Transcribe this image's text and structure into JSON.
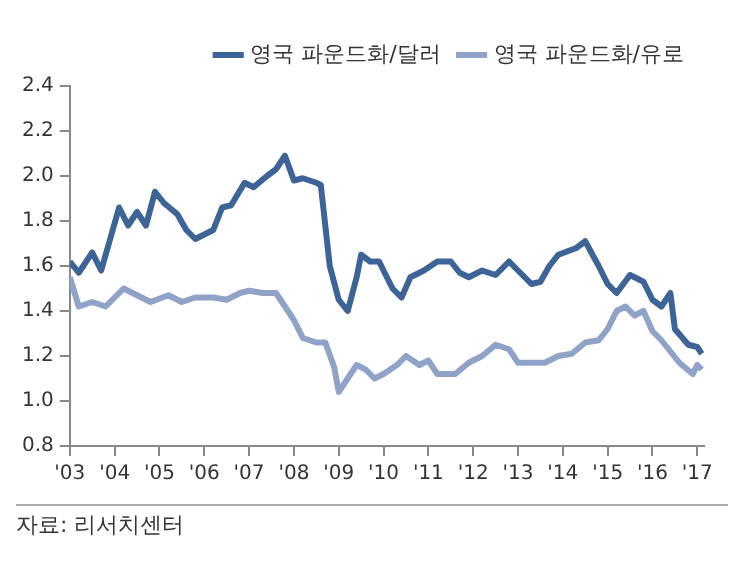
{
  "chart_data": {
    "type": "line",
    "legend": "top right",
    "grid": false,
    "marker": "none",
    "line_style": "solid",
    "xlim": [
      2003,
      2017.15
    ],
    "xticks": [
      {
        "value": 2003,
        "label": "'03"
      },
      {
        "value": 2004,
        "label": "'04"
      },
      {
        "value": 2005,
        "label": "'05"
      },
      {
        "value": 2006,
        "label": "'06"
      },
      {
        "value": 2007,
        "label": "'07"
      },
      {
        "value": 2008,
        "label": "'08"
      },
      {
        "value": 2009,
        "label": "'09"
      },
      {
        "value": 2010,
        "label": "'10"
      },
      {
        "value": 2011,
        "label": "'11"
      },
      {
        "value": 2012,
        "label": "'12"
      },
      {
        "value": 2013,
        "label": "'13"
      },
      {
        "value": 2014,
        "label": "'14"
      },
      {
        "value": 2015,
        "label": "'15"
      },
      {
        "value": 2016,
        "label": "'16"
      },
      {
        "value": 2017,
        "label": "'17"
      }
    ],
    "ylim": [
      0.8,
      2.4
    ],
    "yticks": [
      0.8,
      {
        "value": 1,
        "label": "1.0"
      },
      1.2,
      1.4,
      1.6,
      1.8,
      {
        "value": 2,
        "label": "2.0"
      },
      2.2,
      2.4
    ],
    "series": [
      {
        "name": "영국 파운드화/달러",
        "color": "#3c6496",
        "x": [
          2003.0,
          2003.2,
          2003.5,
          2003.7,
          2003.9,
          2004.1,
          2004.3,
          2004.5,
          2004.7,
          2004.9,
          2005.1,
          2005.4,
          2005.6,
          2005.8,
          2006.0,
          2006.2,
          2006.4,
          2006.6,
          2006.9,
          2007.1,
          2007.4,
          2007.6,
          2007.8,
          2008.0,
          2008.2,
          2008.5,
          2008.6,
          2008.8,
          2009.0,
          2009.2,
          2009.4,
          2009.5,
          2009.7,
          2009.9,
          2010.2,
          2010.4,
          2010.6,
          2010.9,
          2011.2,
          2011.5,
          2011.7,
          2011.9,
          2012.2,
          2012.5,
          2012.8,
          2013.0,
          2013.3,
          2013.5,
          2013.7,
          2013.9,
          2014.3,
          2014.5,
          2014.8,
          2015.0,
          2015.2,
          2015.5,
          2015.8,
          2016.0,
          2016.2,
          2016.4,
          2016.5,
          2016.8,
          2017.0,
          2017.1
        ],
        "values": [
          1.62,
          1.57,
          1.66,
          1.58,
          1.72,
          1.86,
          1.78,
          1.84,
          1.78,
          1.93,
          1.88,
          1.83,
          1.76,
          1.72,
          1.74,
          1.76,
          1.86,
          1.87,
          1.97,
          1.95,
          2.0,
          2.03,
          2.09,
          1.98,
          1.99,
          1.97,
          1.96,
          1.6,
          1.45,
          1.4,
          1.55,
          1.65,
          1.62,
          1.62,
          1.5,
          1.46,
          1.55,
          1.58,
          1.62,
          1.62,
          1.57,
          1.55,
          1.58,
          1.56,
          1.62,
          1.58,
          1.52,
          1.53,
          1.6,
          1.65,
          1.68,
          1.71,
          1.6,
          1.52,
          1.48,
          1.56,
          1.53,
          1.45,
          1.42,
          1.48,
          1.32,
          1.25,
          1.24,
          1.21
        ]
      },
      {
        "name": "영국 파운드화/유로",
        "color": "#8fa3c8",
        "x": [
          2003.0,
          2003.2,
          2003.5,
          2003.8,
          2004.2,
          2004.4,
          2004.8,
          2005.2,
          2005.5,
          2005.8,
          2006.2,
          2006.5,
          2006.8,
          2007.0,
          2007.3,
          2007.6,
          2007.8,
          2008.0,
          2008.2,
          2008.5,
          2008.7,
          2008.9,
          2009.0,
          2009.2,
          2009.4,
          2009.6,
          2009.8,
          2010.0,
          2010.3,
          2010.5,
          2010.8,
          2011.0,
          2011.2,
          2011.6,
          2011.9,
          2012.2,
          2012.5,
          2012.8,
          2013.0,
          2013.3,
          2013.6,
          2013.9,
          2014.2,
          2014.5,
          2014.8,
          2015.0,
          2015.2,
          2015.4,
          2015.6,
          2015.8,
          2016.0,
          2016.2,
          2016.4,
          2016.6,
          2016.9,
          2017.0,
          2017.1
        ],
        "values": [
          1.55,
          1.42,
          1.44,
          1.42,
          1.5,
          1.48,
          1.44,
          1.47,
          1.44,
          1.46,
          1.46,
          1.45,
          1.48,
          1.49,
          1.48,
          1.48,
          1.42,
          1.36,
          1.28,
          1.26,
          1.26,
          1.15,
          1.04,
          1.1,
          1.16,
          1.14,
          1.1,
          1.12,
          1.16,
          1.2,
          1.16,
          1.18,
          1.12,
          1.12,
          1.17,
          1.2,
          1.25,
          1.23,
          1.17,
          1.17,
          1.17,
          1.2,
          1.21,
          1.26,
          1.27,
          1.32,
          1.4,
          1.42,
          1.38,
          1.4,
          1.31,
          1.27,
          1.22,
          1.17,
          1.12,
          1.16,
          1.14
        ]
      }
    ],
    "annotations": [
      "자료: 리서치센터"
    ]
  }
}
